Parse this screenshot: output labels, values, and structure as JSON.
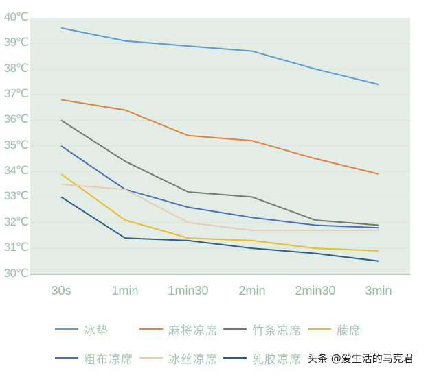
{
  "chart_data": {
    "type": "line",
    "title": "",
    "xlabel": "",
    "ylabel": "",
    "categories": [
      "30s",
      "1min",
      "1min30",
      "2min",
      "2min30",
      "3min"
    ],
    "y_ticks": [
      "30℃",
      "31℃",
      "32℃",
      "33℃",
      "34℃",
      "35℃",
      "36℃",
      "37℃",
      "38℃",
      "39℃",
      "40℃"
    ],
    "ylim": [
      30,
      40
    ],
    "grid": true,
    "legend_position": "bottom",
    "series": [
      {
        "name": "冰垫",
        "color": "#5b9bd0",
        "values": [
          39.6,
          39.1,
          38.9,
          38.7,
          38.0,
          37.4
        ]
      },
      {
        "name": "麻将凉席",
        "color": "#e0803f",
        "values": [
          36.8,
          36.4,
          35.4,
          35.2,
          34.5,
          33.9
        ]
      },
      {
        "name": "竹条凉席",
        "color": "#727a72",
        "values": [
          36.0,
          34.4,
          33.2,
          33.0,
          32.1,
          31.9
        ]
      },
      {
        "name": "藤席",
        "color": "#e8bd2a",
        "values": [
          33.9,
          32.1,
          31.4,
          31.3,
          31.0,
          30.9
        ]
      },
      {
        "name": "粗布凉席",
        "color": "#4a6fb8",
        "values": [
          35.0,
          33.3,
          32.6,
          32.2,
          31.9,
          31.8
        ]
      },
      {
        "name": "冰丝凉席",
        "color": "#e6cdb4",
        "values": [
          33.5,
          33.3,
          32.0,
          31.7,
          31.7,
          31.7
        ]
      },
      {
        "name": "乳胶凉席",
        "color": "#2c5f86",
        "values": [
          33.0,
          31.4,
          31.3,
          31.0,
          30.8,
          30.5
        ]
      }
    ]
  },
  "colors": {
    "plot_background": "#e3ede6",
    "gridline": "#d4e4d9",
    "axis_line": "#b9cbbf",
    "tick_text": "#9ebfa9"
  },
  "watermark": "头条 @爱生活的马克君"
}
